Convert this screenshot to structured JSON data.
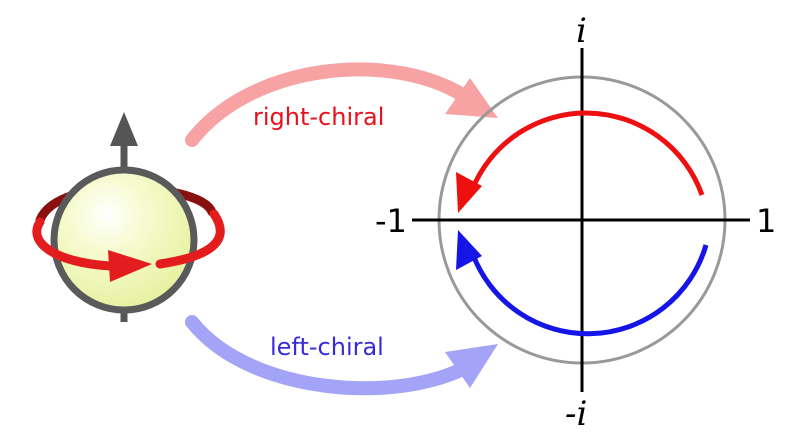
{
  "labels": {
    "right_chiral": "right-chiral",
    "left_chiral": "left-chiral"
  },
  "axes": {
    "neg_one": "-1",
    "pos_one": "1",
    "imag_pos": "i",
    "imag_neg": "-i"
  },
  "colors": {
    "right_arrow_fill": "#f7a3a3",
    "left_arrow_fill": "#a3a3f7",
    "right_label": "#e8101a",
    "left_label": "#3a2bd8",
    "red_arc": "#ee1010",
    "blue_arc": "#1515e8",
    "unit_circle": "#999999",
    "sphere_fill": "#ecf6a0",
    "sphere_edge": "#5a5a5a"
  },
  "icons": {
    "particle": "spinning-particle-icon",
    "spin_axis": "spin-axis-arrow-icon",
    "rotation": "rotation-arrow-icon"
  }
}
